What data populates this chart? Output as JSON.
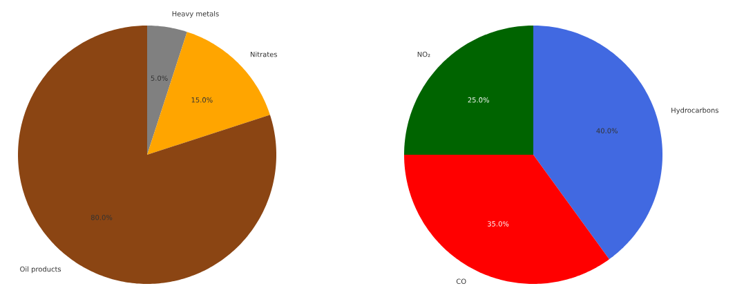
{
  "chart_data": [
    {
      "type": "pie",
      "categories": [
        "Heavy metals",
        "Nitrates",
        "Oil products"
      ],
      "values": [
        5,
        15,
        80
      ],
      "colors": [
        "#808080",
        "#ffa500",
        "#8b4513"
      ],
      "value_labels": [
        "5.0%",
        "15.0%",
        "80.0%"
      ]
    },
    {
      "type": "pie",
      "categories": [
        "Hydrocarbons",
        "CO",
        "NO₂"
      ],
      "values": [
        40,
        35,
        25
      ],
      "colors": [
        "#4169e1",
        "#ff0000",
        "#006400"
      ],
      "value_labels": [
        "40.0%",
        "35.0%",
        "25.0%"
      ]
    }
  ]
}
